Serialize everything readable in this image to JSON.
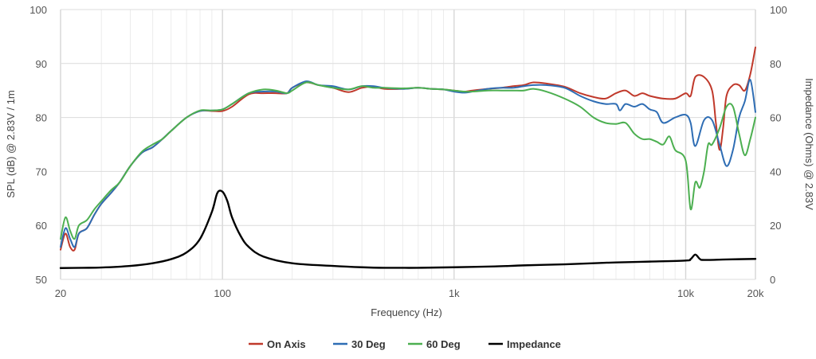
{
  "chart_data": {
    "type": "line",
    "xlabel": "Frequency (Hz)",
    "ylabel_left": "SPL (dB) @ 2.83V / 1m",
    "ylabel_right": "Impedance (Ohms) @ 2.83V",
    "x_scale": "log",
    "xlim": [
      20,
      20000
    ],
    "ylim_left": [
      50,
      100
    ],
    "ylim_right": [
      0,
      100
    ],
    "x_ticks": [
      {
        "value": 20,
        "label": "20"
      },
      {
        "value": 100,
        "label": "100"
      },
      {
        "value": 1000,
        "label": "1k"
      },
      {
        "value": 10000,
        "label": "10k"
      },
      {
        "value": 20000,
        "label": "20k"
      }
    ],
    "y_ticks_left": [
      "50",
      "60",
      "70",
      "80",
      "90",
      "100"
    ],
    "y_ticks_right": [
      "0",
      "20",
      "40",
      "60",
      "80",
      "100"
    ],
    "grid": true,
    "legend_position": "bottom-center",
    "series": [
      {
        "name": "On Axis",
        "color": "#c0392b",
        "axis": "left",
        "points": [
          [
            20,
            55.5
          ],
          [
            21,
            58.5
          ],
          [
            22,
            56
          ],
          [
            23,
            55.5
          ],
          [
            24,
            58.5
          ],
          [
            26,
            59.5
          ],
          [
            28,
            62
          ],
          [
            30,
            64
          ],
          [
            33,
            66
          ],
          [
            36,
            68
          ],
          [
            40,
            71
          ],
          [
            45,
            73.5
          ],
          [
            50,
            74.5
          ],
          [
            55,
            76
          ],
          [
            60,
            77.5
          ],
          [
            70,
            80
          ],
          [
            80,
            81.2
          ],
          [
            90,
            81.2
          ],
          [
            100,
            81.2
          ],
          [
            110,
            82
          ],
          [
            130,
            84.3
          ],
          [
            150,
            84.5
          ],
          [
            170,
            84.5
          ],
          [
            190,
            84.5
          ],
          [
            200,
            85.5
          ],
          [
            230,
            86.5
          ],
          [
            260,
            86
          ],
          [
            300,
            85.5
          ],
          [
            350,
            84.7
          ],
          [
            400,
            85.5
          ],
          [
            450,
            85.7
          ],
          [
            500,
            85.3
          ],
          [
            600,
            85.3
          ],
          [
            700,
            85.5
          ],
          [
            800,
            85.3
          ],
          [
            900,
            85.2
          ],
          [
            1000,
            85
          ],
          [
            1100,
            84.8
          ],
          [
            1200,
            85
          ],
          [
            1400,
            85.3
          ],
          [
            1600,
            85.5
          ],
          [
            1800,
            85.8
          ],
          [
            2000,
            86
          ],
          [
            2200,
            86.5
          ],
          [
            2500,
            86.3
          ],
          [
            3000,
            85.7
          ],
          [
            3500,
            84.5
          ],
          [
            4000,
            83.8
          ],
          [
            4500,
            83.5
          ],
          [
            5000,
            84.5
          ],
          [
            5500,
            85
          ],
          [
            6000,
            84
          ],
          [
            6500,
            84.5
          ],
          [
            7000,
            84
          ],
          [
            8000,
            83.5
          ],
          [
            9000,
            83.5
          ],
          [
            10000,
            84.5
          ],
          [
            10500,
            84
          ],
          [
            11000,
            87.5
          ],
          [
            12000,
            87.5
          ],
          [
            13000,
            85
          ],
          [
            13500,
            79
          ],
          [
            14000,
            74
          ],
          [
            14500,
            78
          ],
          [
            15000,
            84
          ],
          [
            16000,
            86
          ],
          [
            17000,
            86
          ],
          [
            18000,
            85
          ],
          [
            19000,
            88
          ],
          [
            20000,
            93
          ]
        ]
      },
      {
        "name": "30 Deg",
        "color": "#2e6db4",
        "axis": "left",
        "points": [
          [
            20,
            56
          ],
          [
            21,
            59.5
          ],
          [
            22,
            57.5
          ],
          [
            23,
            56
          ],
          [
            24,
            58.5
          ],
          [
            26,
            59.5
          ],
          [
            28,
            62
          ],
          [
            30,
            64
          ],
          [
            33,
            66
          ],
          [
            36,
            68
          ],
          [
            40,
            71
          ],
          [
            45,
            73.5
          ],
          [
            50,
            74.5
          ],
          [
            55,
            76
          ],
          [
            60,
            77.5
          ],
          [
            70,
            80
          ],
          [
            80,
            81.2
          ],
          [
            90,
            81.3
          ],
          [
            100,
            81.5
          ],
          [
            110,
            82.5
          ],
          [
            130,
            84.5
          ],
          [
            150,
            84.8
          ],
          [
            170,
            84.8
          ],
          [
            190,
            84.5
          ],
          [
            200,
            85.5
          ],
          [
            230,
            86.7
          ],
          [
            260,
            86
          ],
          [
            300,
            85.8
          ],
          [
            350,
            85.2
          ],
          [
            400,
            85.8
          ],
          [
            450,
            85.8
          ],
          [
            500,
            85.5
          ],
          [
            600,
            85.3
          ],
          [
            700,
            85.5
          ],
          [
            800,
            85.3
          ],
          [
            900,
            85.2
          ],
          [
            1000,
            84.8
          ],
          [
            1100,
            84.6
          ],
          [
            1200,
            84.8
          ],
          [
            1400,
            85.3
          ],
          [
            1600,
            85.5
          ],
          [
            1800,
            85.5
          ],
          [
            2000,
            85.8
          ],
          [
            2200,
            86
          ],
          [
            2500,
            86
          ],
          [
            3000,
            85.5
          ],
          [
            3500,
            84
          ],
          [
            4000,
            83
          ],
          [
            4500,
            82.5
          ],
          [
            5000,
            82.5
          ],
          [
            5200,
            81.3
          ],
          [
            5500,
            82.5
          ],
          [
            6000,
            82
          ],
          [
            6500,
            82.5
          ],
          [
            7000,
            81.5
          ],
          [
            7500,
            81
          ],
          [
            8000,
            79
          ],
          [
            9000,
            80
          ],
          [
            10000,
            80.5
          ],
          [
            10500,
            79
          ],
          [
            11000,
            74.7
          ],
          [
            12000,
            79.5
          ],
          [
            13000,
            79.5
          ],
          [
            14000,
            75
          ],
          [
            15000,
            71
          ],
          [
            16000,
            74
          ],
          [
            17000,
            80
          ],
          [
            18000,
            83
          ],
          [
            19000,
            87
          ],
          [
            20000,
            81
          ]
        ]
      },
      {
        "name": "60 Deg",
        "color": "#4caf50",
        "axis": "left",
        "points": [
          [
            20,
            57.5
          ],
          [
            21,
            61.5
          ],
          [
            22,
            59
          ],
          [
            23,
            57.5
          ],
          [
            24,
            60
          ],
          [
            26,
            61
          ],
          [
            28,
            63
          ],
          [
            30,
            64.5
          ],
          [
            33,
            66.5
          ],
          [
            36,
            68
          ],
          [
            40,
            71
          ],
          [
            45,
            73.7
          ],
          [
            50,
            75
          ],
          [
            55,
            76
          ],
          [
            60,
            77.5
          ],
          [
            70,
            80
          ],
          [
            80,
            81.3
          ],
          [
            90,
            81.3
          ],
          [
            100,
            81.5
          ],
          [
            110,
            82.5
          ],
          [
            130,
            84.5
          ],
          [
            150,
            85.2
          ],
          [
            170,
            85
          ],
          [
            190,
            84.5
          ],
          [
            200,
            85
          ],
          [
            230,
            86.5
          ],
          [
            260,
            86
          ],
          [
            300,
            85.5
          ],
          [
            350,
            85.2
          ],
          [
            400,
            85.8
          ],
          [
            450,
            85.5
          ],
          [
            500,
            85.5
          ],
          [
            600,
            85.4
          ],
          [
            700,
            85.5
          ],
          [
            800,
            85.3
          ],
          [
            900,
            85.2
          ],
          [
            1000,
            85
          ],
          [
            1100,
            84.8
          ],
          [
            1200,
            84.8
          ],
          [
            1400,
            85
          ],
          [
            1600,
            85
          ],
          [
            1800,
            85
          ],
          [
            2000,
            85
          ],
          [
            2200,
            85.3
          ],
          [
            2500,
            84.8
          ],
          [
            3000,
            83.5
          ],
          [
            3500,
            82
          ],
          [
            4000,
            80
          ],
          [
            4500,
            79
          ],
          [
            5000,
            78.8
          ],
          [
            5500,
            79
          ],
          [
            6000,
            77
          ],
          [
            6500,
            76
          ],
          [
            7000,
            76
          ],
          [
            7500,
            75.5
          ],
          [
            8000,
            75
          ],
          [
            8500,
            76.5
          ],
          [
            9000,
            74
          ],
          [
            10000,
            72
          ],
          [
            10500,
            63
          ],
          [
            11000,
            68
          ],
          [
            11500,
            67
          ],
          [
            12000,
            70
          ],
          [
            12500,
            75
          ],
          [
            13000,
            75
          ],
          [
            14000,
            78
          ],
          [
            15000,
            82
          ],
          [
            16000,
            82
          ],
          [
            17000,
            77
          ],
          [
            18000,
            73
          ],
          [
            19000,
            76
          ],
          [
            20000,
            80
          ]
        ]
      },
      {
        "name": "Impedance",
        "color": "#000000",
        "axis": "right",
        "points": [
          [
            20,
            4.2
          ],
          [
            25,
            4.3
          ],
          [
            30,
            4.4
          ],
          [
            40,
            5
          ],
          [
            50,
            6
          ],
          [
            60,
            7.5
          ],
          [
            70,
            10
          ],
          [
            80,
            15
          ],
          [
            90,
            25
          ],
          [
            95,
            32
          ],
          [
            100,
            32.5
          ],
          [
            105,
            29
          ],
          [
            110,
            23
          ],
          [
            120,
            16
          ],
          [
            130,
            12
          ],
          [
            150,
            8.5
          ],
          [
            200,
            6
          ],
          [
            300,
            5
          ],
          [
            400,
            4.5
          ],
          [
            500,
            4.3
          ],
          [
            700,
            4.3
          ],
          [
            1000,
            4.5
          ],
          [
            1500,
            4.8
          ],
          [
            2000,
            5.2
          ],
          [
            3000,
            5.6
          ],
          [
            4000,
            6
          ],
          [
            5000,
            6.3
          ],
          [
            7000,
            6.6
          ],
          [
            10000,
            7
          ],
          [
            10500,
            7.5
          ],
          [
            11000,
            9.2
          ],
          [
            11500,
            7.6
          ],
          [
            12000,
            7.2
          ],
          [
            15000,
            7.4
          ],
          [
            20000,
            7.6
          ]
        ]
      }
    ]
  }
}
